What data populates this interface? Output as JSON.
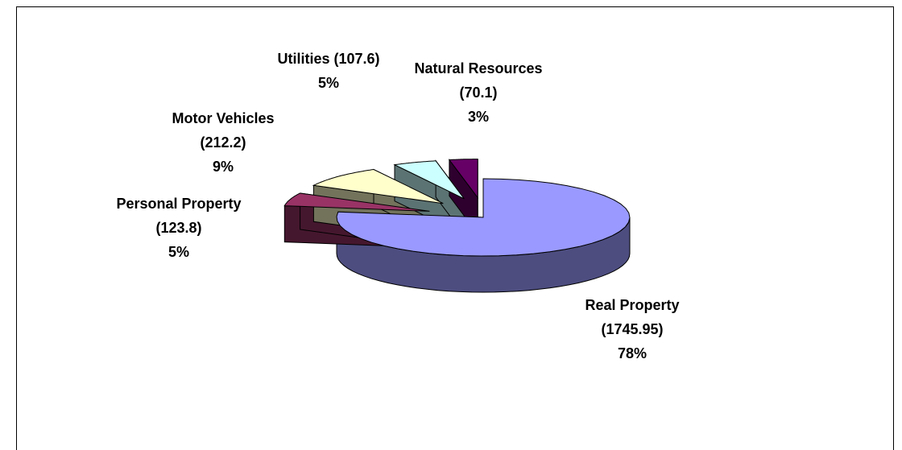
{
  "chart_data": {
    "type": "pie3d",
    "categories": [
      "Real Property",
      "Personal Property",
      "Motor Vehicles",
      "Utilities",
      "Natural Resources"
    ],
    "values": [
      1745.95,
      123.8,
      212.2,
      107.6,
      70.1
    ],
    "value_labels": [
      "(1745.95)",
      "(123.8)",
      "(212.2)",
      "(107.6)",
      "(70.1)"
    ],
    "percent_labels": [
      "78%",
      "5%",
      "9%",
      "5%",
      "3%"
    ],
    "colors": [
      "#9999ff",
      "#993366",
      "#ffffcc",
      "#ccffff",
      "#660066"
    ]
  }
}
